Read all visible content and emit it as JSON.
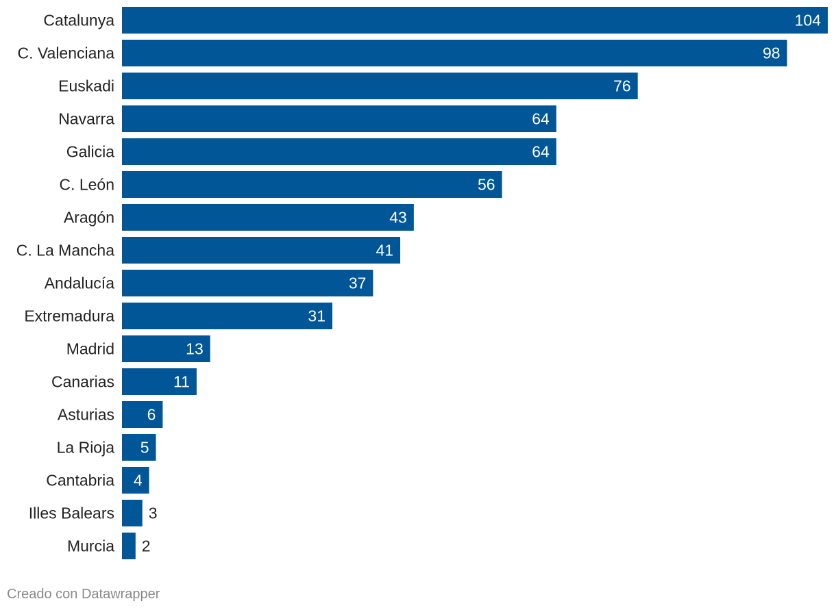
{
  "chart_data": {
    "type": "bar",
    "orientation": "horizontal",
    "categories": [
      "Catalunya",
      "C. Valenciana",
      "Euskadi",
      "Navarra",
      "Galicia",
      "C. León",
      "Aragón",
      "C. La Mancha",
      "Andalucía",
      "Extremadura",
      "Madrid",
      "Canarias",
      "Asturias",
      "La Rioja",
      "Cantabria",
      "Illes Balears",
      "Murcia"
    ],
    "values": [
      104,
      98,
      76,
      64,
      64,
      56,
      43,
      41,
      37,
      31,
      13,
      11,
      6,
      5,
      4,
      3,
      2
    ],
    "xlim": [
      0,
      104
    ],
    "grid": false,
    "data_labels": true
  },
  "colors": {
    "bar": "#005696"
  },
  "credit": "Creado con Datawrapper"
}
